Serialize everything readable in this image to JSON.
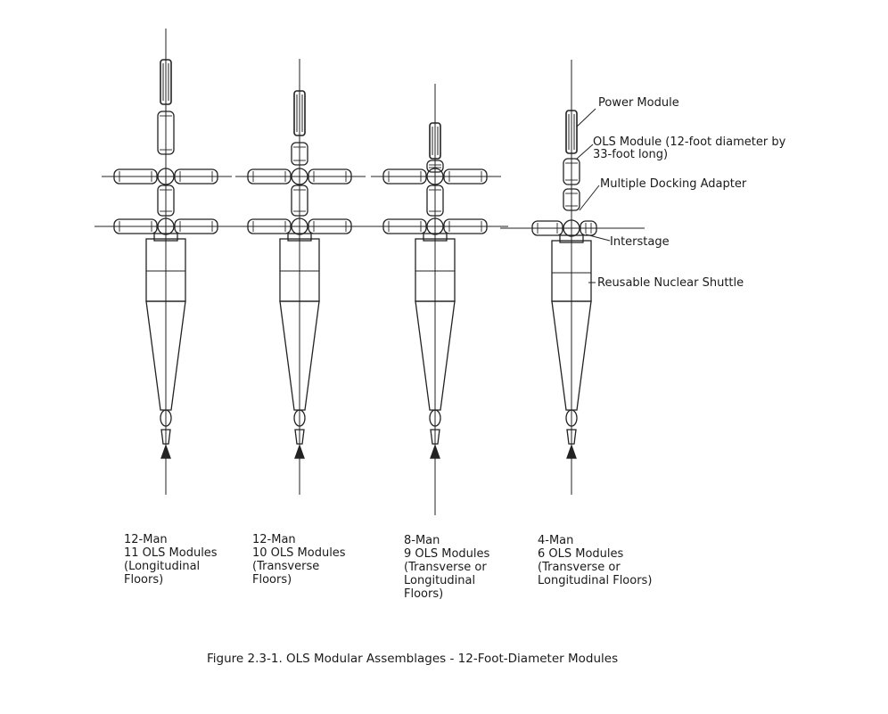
{
  "callouts": {
    "power_module": "Power Module",
    "ols_module_line1": "OLS Module (12-foot diameter by",
    "ols_module_line2": "33-foot long)",
    "docking_adapter": "Multiple Docking Adapter",
    "interstage": "Interstage",
    "nuclear_shuttle": "Reusable Nuclear Shuttle"
  },
  "assemblies": [
    {
      "crew": "12-Man",
      "modules": "11 OLS Modules",
      "floors_line1": "(Longitudinal",
      "floors_line2": "Floors)",
      "floors_line3": ""
    },
    {
      "crew": "12-Man",
      "modules": "10 OLS Modules",
      "floors_line1": "(Transverse",
      "floors_line2": "Floors)",
      "floors_line3": ""
    },
    {
      "crew": "8-Man",
      "modules": "9 OLS Modules",
      "floors_line1": "(Transverse or",
      "floors_line2": "Longitudinal",
      "floors_line3": "Floors)"
    },
    {
      "crew": "4-Man",
      "modules": "6 OLS Modules",
      "floors_line1": "(Transverse or",
      "floors_line2": "Longitudinal Floors)",
      "floors_line3": ""
    }
  ],
  "figure_caption": "Figure 2.3-1. OLS Modular Assemblages - 12-Foot-Diameter Modules"
}
